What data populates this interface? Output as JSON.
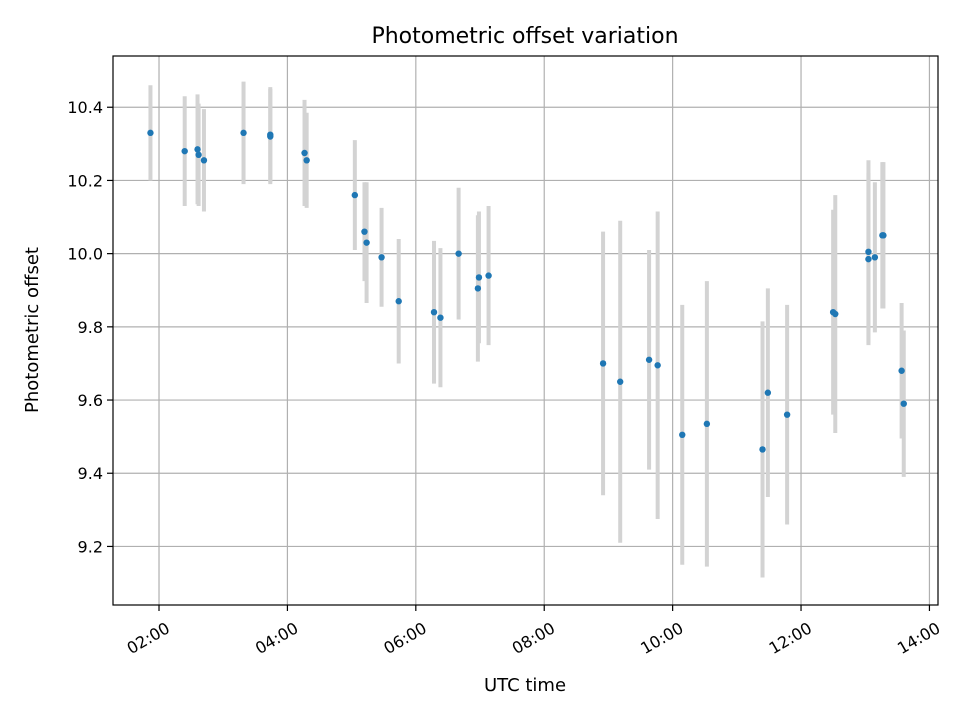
{
  "chart_data": {
    "type": "scatter",
    "title": "Photometric offset variation",
    "xlabel": "UTC time",
    "ylabel": "Photometric offset",
    "xlim": [
      "01:17",
      "14:08"
    ],
    "ylim": [
      9.04,
      10.54
    ],
    "xticks": [
      "02:00",
      "04:00",
      "06:00",
      "08:00",
      "10:00",
      "12:00",
      "14:00"
    ],
    "yticks": [
      9.2,
      9.4,
      9.6,
      9.8,
      10.0,
      10.2,
      10.4
    ],
    "ytick_labels": [
      "9.2",
      "9.4",
      "9.6",
      "9.8",
      "10.0",
      "10.2",
      "10.4"
    ],
    "grid": true,
    "point_color": "#1f77b4",
    "errorbar_color": "#d3d3d3",
    "points": [
      {
        "x": "01:52",
        "y": 10.33,
        "err": 0.13
      },
      {
        "x": "02:24",
        "y": 10.28,
        "err": 0.15
      },
      {
        "x": "02:36",
        "y": 10.285,
        "err": 0.15
      },
      {
        "x": "02:37",
        "y": 10.27,
        "err": 0.14
      },
      {
        "x": "02:42",
        "y": 10.255,
        "err": 0.14
      },
      {
        "x": "03:19",
        "y": 10.33,
        "err": 0.14
      },
      {
        "x": "03:44",
        "y": 10.325,
        "err": 0.13
      },
      {
        "x": "03:44",
        "y": 10.32,
        "err": 0.13
      },
      {
        "x": "04:16",
        "y": 10.275,
        "err": 0.145
      },
      {
        "x": "04:18",
        "y": 10.255,
        "err": 0.13
      },
      {
        "x": "05:03",
        "y": 10.16,
        "err": 0.15
      },
      {
        "x": "05:12",
        "y": 10.06,
        "err": 0.135
      },
      {
        "x": "05:14",
        "y": 10.03,
        "err": 0.165
      },
      {
        "x": "05:28",
        "y": 9.99,
        "err": 0.135
      },
      {
        "x": "05:44",
        "y": 9.87,
        "err": 0.17
      },
      {
        "x": "06:17",
        "y": 9.84,
        "err": 0.195
      },
      {
        "x": "06:23",
        "y": 9.825,
        "err": 0.19
      },
      {
        "x": "06:40",
        "y": 10.0,
        "err": 0.18
      },
      {
        "x": "06:58",
        "y": 9.905,
        "err": 0.2
      },
      {
        "x": "06:59",
        "y": 9.935,
        "err": 0.18
      },
      {
        "x": "07:08",
        "y": 9.94,
        "err": 0.19
      },
      {
        "x": "08:55",
        "y": 9.7,
        "err": 0.36
      },
      {
        "x": "09:11",
        "y": 9.65,
        "err": 0.44
      },
      {
        "x": "09:38",
        "y": 9.71,
        "err": 0.3
      },
      {
        "x": "09:46",
        "y": 9.695,
        "err": 0.42
      },
      {
        "x": "10:09",
        "y": 9.505,
        "err": 0.355
      },
      {
        "x": "10:32",
        "y": 9.535,
        "err": 0.39
      },
      {
        "x": "11:24",
        "y": 9.465,
        "err": 0.35
      },
      {
        "x": "11:29",
        "y": 9.62,
        "err": 0.285
      },
      {
        "x": "11:47",
        "y": 9.56,
        "err": 0.3
      },
      {
        "x": "12:30",
        "y": 9.84,
        "err": 0.28
      },
      {
        "x": "12:32",
        "y": 9.835,
        "err": 0.325
      },
      {
        "x": "13:03",
        "y": 10.005,
        "err": 0.25
      },
      {
        "x": "13:03",
        "y": 9.985,
        "err": 0.235
      },
      {
        "x": "13:09",
        "y": 9.99,
        "err": 0.205
      },
      {
        "x": "13:16",
        "y": 10.05,
        "err": 0.2
      },
      {
        "x": "13:17",
        "y": 10.05,
        "err": 0.2
      },
      {
        "x": "13:34",
        "y": 9.68,
        "err": 0.185
      },
      {
        "x": "13:36",
        "y": 9.59,
        "err": 0.2
      }
    ]
  }
}
